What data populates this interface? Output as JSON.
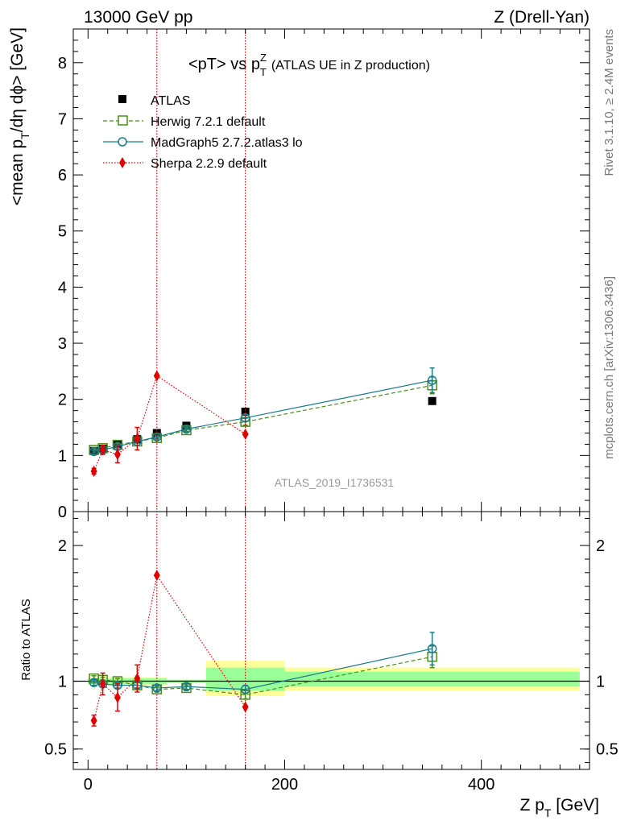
{
  "header": {
    "left": "13000 GeV pp",
    "right": "Z (Drell-Yan)"
  },
  "side_text": {
    "rivet": "Rivet 3.1.10, ≥ 2.4M events",
    "mcplots": "mcplots.cern.ch [arXiv:1306.3436]"
  },
  "watermark": "ATLAS_2019_I1736531",
  "colors": {
    "atlas": "#000000",
    "herwig": "#4a8c1c",
    "madgraph": "#1a7a8a",
    "sherpa": "#e00000",
    "band_yellow": "#ffff99",
    "band_green": "#99ff99"
  },
  "chart_data": [
    {
      "type": "scatter",
      "title_main": "<pT> vs p",
      "title_sup": "Z",
      "title_sub": "T",
      "title_suffix": "(ATLAS UE in Z production)",
      "ylabel_pre": "<mean p",
      "ylabel_sub": "T",
      "ylabel_post": "/dη dϕ> [GeV]",
      "xlim": [
        -15,
        510
      ],
      "ylim": [
        0,
        8.6
      ],
      "yticks": [
        "0",
        "1",
        "2",
        "3",
        "4",
        "5",
        "6",
        "7",
        "8"
      ],
      "legend_position": "top-left",
      "series": [
        {
          "name": "ATLAS",
          "marker": "filled-square",
          "x": [
            6,
            15,
            30,
            50,
            70,
            100,
            160,
            350
          ],
          "y": [
            1.08,
            1.12,
            1.2,
            1.29,
            1.4,
            1.53,
            1.78,
            1.97
          ]
        },
        {
          "name": "Herwig 7.2.1 default",
          "marker": "open-square",
          "line": "dashed",
          "x": [
            6,
            15,
            30,
            50,
            70,
            100,
            160,
            350
          ],
          "y": [
            1.1,
            1.13,
            1.19,
            1.25,
            1.31,
            1.45,
            1.6,
            2.25
          ],
          "yerr": [
            0.02,
            0.02,
            0.02,
            0.03,
            0.03,
            0.04,
            0.06,
            0.15
          ]
        },
        {
          "name": "MadGraph5 2.7.2.atlas3 lo",
          "marker": "open-circle",
          "line": "solid",
          "x": [
            6,
            15,
            30,
            50,
            70,
            100,
            160,
            350
          ],
          "y": [
            1.07,
            1.1,
            1.16,
            1.25,
            1.33,
            1.47,
            1.67,
            2.34
          ],
          "yerr": [
            0.02,
            0.02,
            0.02,
            0.03,
            0.03,
            0.04,
            0.06,
            0.22
          ]
        },
        {
          "name": "Sherpa 2.2.9 default",
          "marker": "filled-diamond",
          "line": "dotted",
          "x": [
            6,
            15,
            30,
            50,
            70,
            160
          ],
          "y": [
            0.72,
            1.1,
            1.02,
            1.3,
            2.42,
            1.38
          ],
          "yerr": [
            0.05,
            0.08,
            0.15,
            0.2,
            0.0,
            0.0
          ]
        }
      ]
    },
    {
      "type": "scatter",
      "ylabel": "Ratio to ATLAS",
      "xlabel_pre": "Z p",
      "xlabel_sub": "T",
      "xlabel_post": " [GeV]",
      "xlim": [
        -15,
        510
      ],
      "ylim": [
        0.35,
        2.25
      ],
      "xticks": [
        "0",
        "200",
        "400"
      ],
      "yticks": [
        "0.5",
        "1",
        "2"
      ],
      "vertical_lines_x": [
        70,
        160
      ],
      "bands": [
        {
          "x": [
            0,
            80
          ],
          "yellow": [
            0.97,
            1.03
          ],
          "green": [
            0.98,
            1.02
          ]
        },
        {
          "x": [
            80,
            120
          ],
          "yellow": [
            0.985,
            1.015
          ],
          "green": [
            0.99,
            1.01
          ]
        },
        {
          "x": [
            120,
            200
          ],
          "yellow": [
            0.89,
            1.15
          ],
          "green": [
            0.93,
            1.1
          ]
        },
        {
          "x": [
            200,
            500
          ],
          "yellow": [
            0.93,
            1.1
          ],
          "green": [
            0.96,
            1.07
          ]
        }
      ],
      "series": [
        {
          "name": "Herwig 7.2.1 default",
          "x": [
            6,
            15,
            30,
            50,
            70,
            100,
            160,
            350
          ],
          "y": [
            1.02,
            1.01,
            1.0,
            0.97,
            0.94,
            0.95,
            0.9,
            1.18
          ],
          "yerr": [
            0.02,
            0.02,
            0.02,
            0.02,
            0.02,
            0.02,
            0.03,
            0.08
          ]
        },
        {
          "name": "MadGraph5 2.7.2.atlas3 lo",
          "x": [
            6,
            15,
            30,
            50,
            70,
            100,
            160,
            350
          ],
          "y": [
            0.99,
            0.98,
            0.97,
            0.97,
            0.95,
            0.96,
            0.94,
            1.24
          ],
          "yerr": [
            0.02,
            0.02,
            0.02,
            0.02,
            0.02,
            0.02,
            0.03,
            0.12
          ]
        },
        {
          "name": "Sherpa 2.2.9 default",
          "x": [
            6,
            15,
            30,
            50,
            70,
            160
          ],
          "y": [
            0.71,
            0.98,
            0.88,
            1.02,
            1.78,
            0.81
          ],
          "yerr": [
            0.04,
            0.08,
            0.1,
            0.1,
            0.0,
            0.0
          ]
        }
      ]
    }
  ]
}
